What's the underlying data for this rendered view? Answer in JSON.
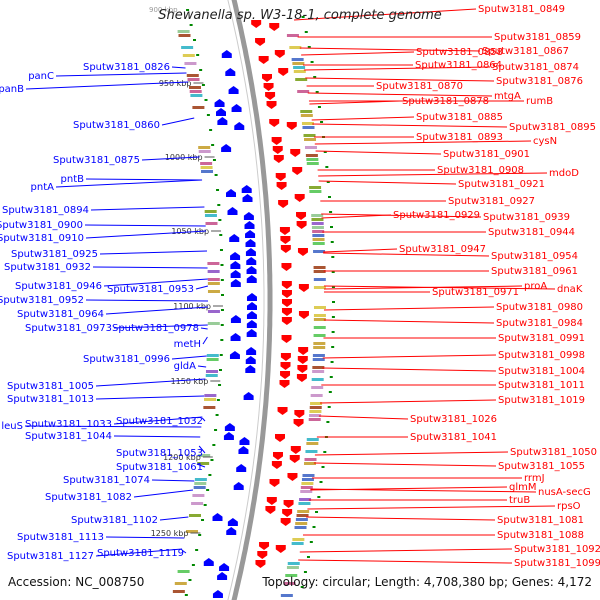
{
  "title": "Shewanella sp. W3-18-1, complete genome",
  "top_cut_label": "900 kbp",
  "accession_text": "Accession: NC_008750",
  "topology_text": "Topology: circular; Length: 4,708,380 bp; Genes: 4,172",
  "colors": {
    "reverse": "#0000ff",
    "forward": "#ff0000",
    "backbone": "#999999",
    "tick": "#008800"
  },
  "kbp_ticks": [
    "950 kbp",
    "1000 kbp",
    "1050 kbp",
    "1100 kbp",
    "1150 kbp",
    "1200 kbp",
    "1250 kbp"
  ],
  "left_labels": [
    "panB",
    "panC",
    "Sputw3181_0826",
    "Sputw3181_0860",
    "Sputw3181_0875",
    "pntB",
    "pntA",
    "Sputw3181_0894",
    "Sputw3181_0900",
    "Sputw3181_0910",
    "Sputw3181_0925",
    "Sputw3181_0932",
    "Sputw3181_0946",
    "Sputw3181_0953",
    "Sputw3181_0952",
    "Sputw3181_0964",
    "Sputw3181_0973",
    "Sputw3181_0978",
    "metH",
    "Sputw3181_0996",
    "gldA",
    "Sputw3181_1005",
    "Sputw3181_1013",
    "leuS",
    "Sputw3181_1033",
    "Sputw3181_1032",
    "Sputw3181_1044",
    "Sputw3181_1053",
    "Sputw3181_1061",
    "Sputw3181_1074",
    "Sputw3181_1082",
    "Sputw3181_1102",
    "Sputw3181_1113",
    "Sputw3181_1127",
    "Sputw3181_1119"
  ],
  "right_labels": [
    "Sputw3181_0849",
    "Sputw3181_0859",
    "Sputw3181_0858",
    "Sputw3181_0867",
    "Sputw3181_0864",
    "Sputw3181_0874",
    "Sputw3181_0876",
    "Sputw3181_0870",
    "Sputw3181_0878",
    "mtgA",
    "rumB",
    "Sputw3181_0885",
    "Sputw3181_0895",
    "Sputw3181_0893",
    "cysN",
    "Sputw3181_0901",
    "Sputw3181_0908",
    "mdoD",
    "Sputw3181_0921",
    "Sputw3181_0927",
    "Sputw3181_0929",
    "Sputw3181_0939",
    "Sputw3181_0944",
    "Sputw3181_0947",
    "Sputw3181_0954",
    "Sputw3181_0961",
    "proA",
    "dnaK",
    "Sputw3181_0971",
    "Sputw3181_0980",
    "Sputw3181_0984",
    "Sputw3181_0991",
    "Sputw3181_0998",
    "Sputw3181_1004",
    "Sputw3181_1011",
    "Sputw3181_1019",
    "Sputw3181_1026",
    "Sputw3181_1041",
    "Sputw3181_1050",
    "Sputw3181_1055",
    "rrmJ",
    "glmM",
    "nusA-secG",
    "truB",
    "rpsO",
    "Sputw3181_1081",
    "Sputw3181_1088",
    "Sputw3181_1092",
    "Sputw3181_1099"
  ]
}
